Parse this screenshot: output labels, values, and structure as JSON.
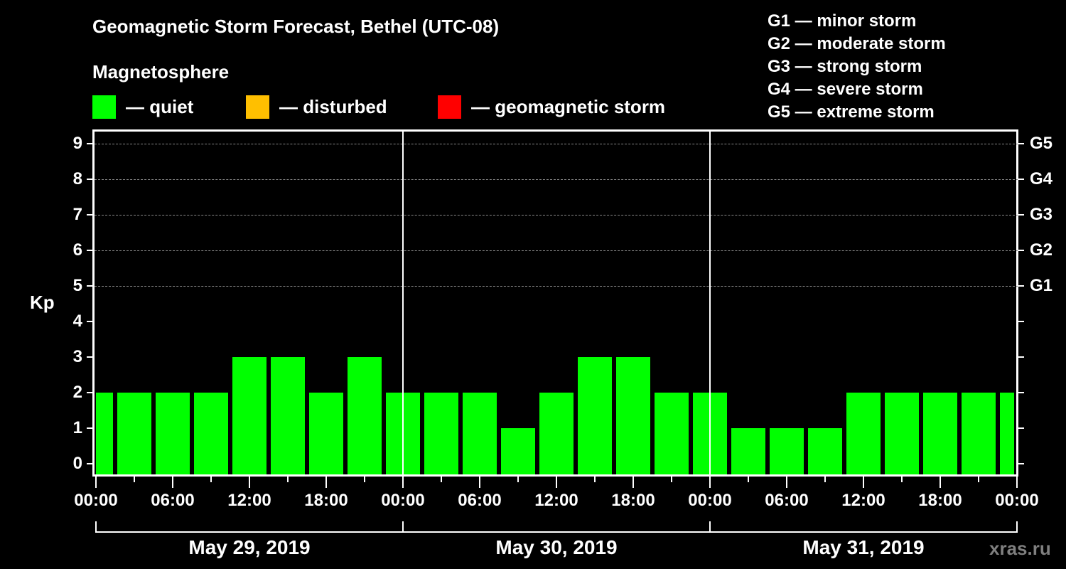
{
  "chart_data": {
    "type": "bar",
    "title": "Geomagnetic Storm Forecast, Bethel (UTC-08)",
    "subtitle": "Magnetosphere",
    "ylabel": "Kp",
    "xlabel": "",
    "ylim": [
      0,
      9
    ],
    "yticks": [
      0,
      1,
      2,
      3,
      4,
      5,
      6,
      7,
      8,
      9
    ],
    "right_axis_labels": [
      {
        "kp": 5,
        "label": "G1"
      },
      {
        "kp": 6,
        "label": "G2"
      },
      {
        "kp": 7,
        "label": "G3"
      },
      {
        "kp": 8,
        "label": "G4"
      },
      {
        "kp": 9,
        "label": "G5"
      }
    ],
    "grid": "dashed horizontal at Kp 5-9",
    "x_tick_labels": [
      "00:00",
      "06:00",
      "12:00",
      "18:00",
      "00:00",
      "06:00",
      "12:00",
      "18:00",
      "00:00",
      "06:00",
      "12:00",
      "18:00",
      "00:00"
    ],
    "days": [
      "May 29, 2019",
      "May 30, 2019",
      "May 31, 2019"
    ],
    "categories": [
      "May 29 00:00",
      "May 29 03:00",
      "May 29 06:00",
      "May 29 09:00",
      "May 29 12:00",
      "May 29 15:00",
      "May 29 18:00",
      "May 29 21:00",
      "May 30 00:00",
      "May 30 03:00",
      "May 30 06:00",
      "May 30 09:00",
      "May 30 12:00",
      "May 30 15:00",
      "May 30 18:00",
      "May 30 21:00",
      "May 31 00:00",
      "May 31 03:00",
      "May 31 06:00",
      "May 31 09:00",
      "May 31 12:00",
      "May 31 15:00",
      "May 31 18:00",
      "May 31 21:00",
      "Jun 01 00:00"
    ],
    "values": [
      2,
      2,
      2,
      2,
      3,
      3,
      2,
      3,
      2,
      2,
      2,
      1,
      2,
      3,
      3,
      2,
      2,
      1,
      1,
      1,
      2,
      2,
      2,
      2,
      2
    ],
    "bar_color": "#00ff00",
    "legend": [
      {
        "label": "— quiet",
        "color": "#00ff00"
      },
      {
        "label": "— disturbed",
        "color": "#ffbf00"
      },
      {
        "label": "— geomagnetic storm",
        "color": "#ff0000"
      }
    ],
    "g_scale": [
      "G1 — minor storm",
      "G2 — moderate storm",
      "G3 — strong storm",
      "G4 — severe storm",
      "G5 — extreme storm"
    ]
  },
  "watermark": "xras.ru"
}
